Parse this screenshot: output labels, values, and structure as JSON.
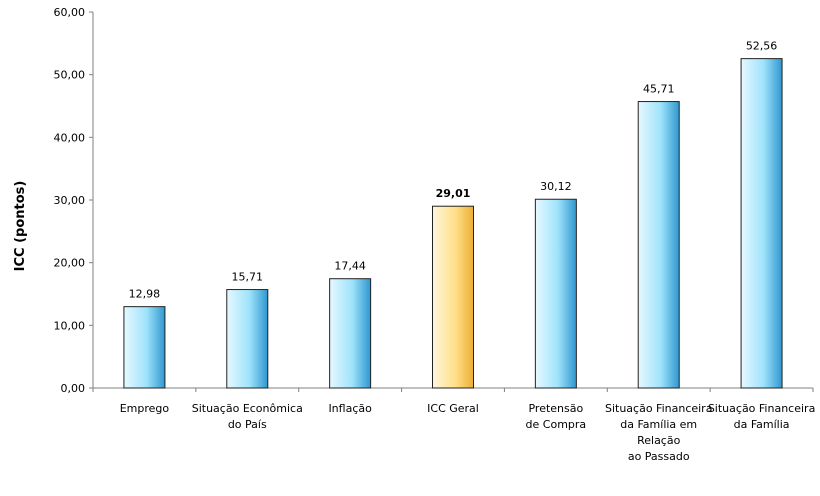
{
  "chart_data": {
    "type": "bar",
    "title": "",
    "xlabel": "",
    "ylabel": "ICC (pontos)",
    "ylim": [
      0,
      60
    ],
    "yticks": [
      "0,00",
      "10,00",
      "20,00",
      "30,00",
      "40,00",
      "50,00",
      "60,00"
    ],
    "grid": false,
    "legend": "none",
    "categories": [
      [
        "Emprego"
      ],
      [
        "Situação Econômica",
        "do País"
      ],
      [
        "Inflação"
      ],
      [
        "ICC Geral"
      ],
      [
        "Pretensão",
        "de Compra"
      ],
      [
        "Situação Financeira",
        "da Família em",
        "Relação",
        "ao Passado"
      ],
      [
        "Situação Financeira",
        "da Família"
      ]
    ],
    "values": [
      12.98,
      15.71,
      17.44,
      29.01,
      30.12,
      45.71,
      52.56
    ],
    "value_labels": [
      "12,98",
      "15,71",
      "17,44",
      "29,01",
      "30,12",
      "45,71",
      "52,56"
    ],
    "highlight_index": 3,
    "colors": {
      "bar_light": "#e6f8ff",
      "bar_mid": "#9fe3fb",
      "bar_dark": "#2f97cf",
      "highlight_light": "#fff6dc",
      "highlight_mid": "#ffe08a",
      "highlight_dark": "#eeae34",
      "bar_stroke": "#222222",
      "axis": "#808080",
      "text": "#000000"
    }
  }
}
